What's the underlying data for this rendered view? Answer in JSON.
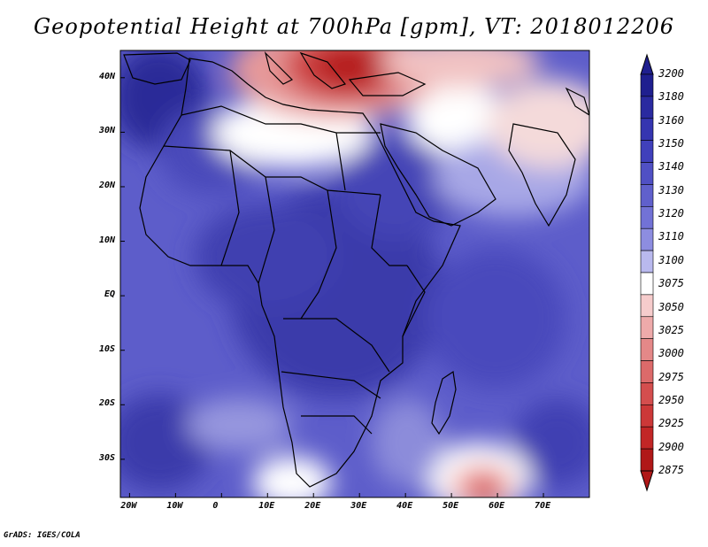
{
  "title": "Geopotential Height at 700hPa [gpm], VT: 2018012206",
  "footer": "GrADS: IGES/COLA",
  "map": {
    "x_tick_labels": [
      "20W",
      "10W",
      "0",
      "10E",
      "20E",
      "30E",
      "40E",
      "50E",
      "60E",
      "70E"
    ],
    "x_tick_lons": [
      -20,
      -10,
      0,
      10,
      20,
      30,
      40,
      50,
      60,
      70
    ],
    "y_tick_labels": [
      "40N",
      "30N",
      "20N",
      "10N",
      "EQ",
      "10S",
      "20S",
      "30S"
    ],
    "y_tick_lats": [
      40,
      30,
      20,
      10,
      0,
      -10,
      -20,
      -30
    ],
    "lon_range": [
      -22,
      80
    ],
    "lat_range": [
      -37,
      45
    ]
  },
  "colorbar": {
    "levels": [
      "3200",
      "3180",
      "3160",
      "3150",
      "3140",
      "3130",
      "3120",
      "3110",
      "3100",
      "3075",
      "3050",
      "3025",
      "3000",
      "2975",
      "2950",
      "2925",
      "2900",
      "2875"
    ],
    "colors": [
      "#1f1f8f",
      "#2a2aa0",
      "#3535b0",
      "#4040bb",
      "#5050c4",
      "#6060cc",
      "#7272d6",
      "#8d8de0",
      "#b9b9ee",
      "#ffffff",
      "#f6cccc",
      "#eeaaaa",
      "#e48888",
      "#dc6a6a",
      "#d44e4e",
      "#cc3838",
      "#c22626",
      "#b01818"
    ]
  },
  "colors": {
    "deep_blue": "#2e2e9c",
    "mid_blue": "#5a5ac8",
    "light_blue": "#a0a0e6",
    "white": "#ffffff",
    "light_red": "#f2b8b8",
    "red": "#d44848",
    "dark_red": "#b01818",
    "coast": "#000000"
  }
}
